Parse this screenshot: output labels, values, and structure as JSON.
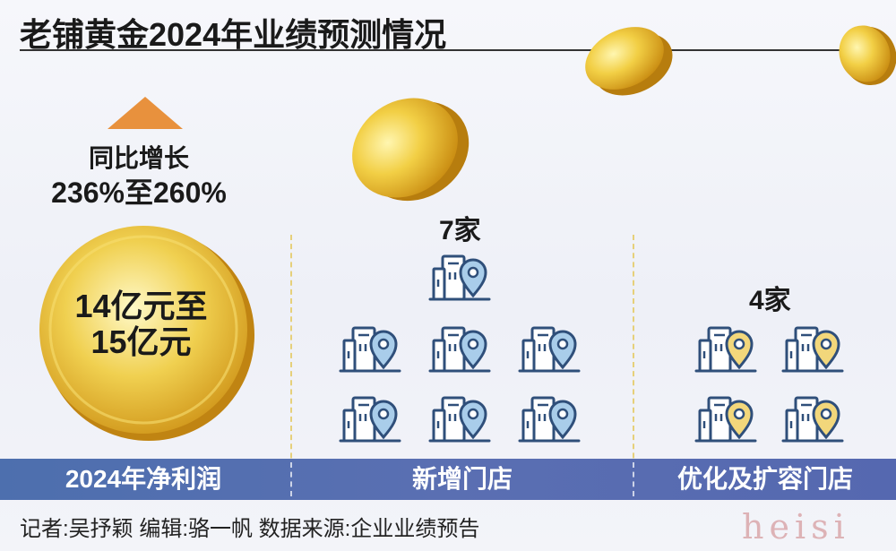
{
  "title": "老铺黄金2024年业绩预测情况",
  "growth": {
    "label": "同比增长",
    "value": "236%至260%"
  },
  "profit": {
    "line1": "14亿元至",
    "line2": "15亿元"
  },
  "new_stores": {
    "count_label": "7家",
    "count": 7,
    "icon_color": "#a9cdea"
  },
  "optimized_stores": {
    "count_label": "4家",
    "count": 4,
    "icon_color": "#f2d77b"
  },
  "bar_labels": {
    "profit": "2024年净利润",
    "new_stores": "新增门店",
    "optimized_stores": "优化及扩容门店"
  },
  "footer": "记者:吴抒颖  编辑:骆一帆  数据来源:企业业绩预告",
  "watermark": "heisi",
  "colors": {
    "bar": "#5568b0",
    "arrow": "#e8913d",
    "coin": "#e8b92c"
  },
  "chart_data": {
    "type": "table",
    "title": "老铺黄金2024年业绩预测情况",
    "rows": [
      {
        "category": "2024年净利润",
        "value": "14亿元至15亿元",
        "growth": "同比增长236%至260%"
      },
      {
        "category": "新增门店",
        "value": "7家",
        "count": 7
      },
      {
        "category": "优化及扩容门店",
        "value": "4家",
        "count": 4
      }
    ]
  }
}
